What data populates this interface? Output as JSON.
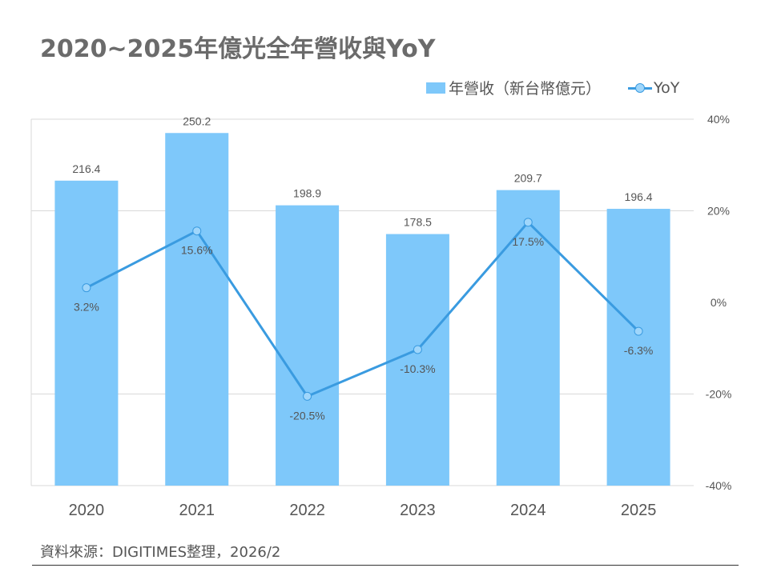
{
  "title": "2020~2025年億光全年營收與YoY",
  "source": "資料來源：DIGITIMES整理，2026/2",
  "colors": {
    "bar": "#7ec8fa",
    "line": "#3a9be0",
    "point_fill": "#9fd6fb",
    "grid": "#d9d9d9",
    "text": "#555555"
  },
  "chart_data": {
    "type": "bar",
    "categories": [
      "2020",
      "2021",
      "2022",
      "2023",
      "2024",
      "2025"
    ],
    "series": [
      {
        "name": "年營收（新台幣億元）",
        "type": "bar",
        "axis": "left",
        "values": [
          216.4,
          250.2,
          198.9,
          178.5,
          209.7,
          196.4
        ],
        "labels": [
          "216.4",
          "250.2",
          "198.9",
          "178.5",
          "209.7",
          "196.4"
        ]
      },
      {
        "name": "YoY",
        "type": "line",
        "axis": "right",
        "values": [
          3.2,
          15.6,
          -20.5,
          -10.3,
          17.5,
          -6.3
        ],
        "labels": [
          "3.2%",
          "15.6%",
          "-20.5%",
          "-10.3%",
          "17.5%",
          "-6.3%"
        ]
      }
    ],
    "y_left": {
      "lim": [
        0,
        260
      ]
    },
    "y_right": {
      "lim": [
        -40,
        40
      ],
      "ticks": [
        "40%",
        "20%",
        "0%",
        "-20%",
        "-40%"
      ],
      "tick_values": [
        40,
        20,
        0,
        -20,
        -40
      ]
    },
    "grid": true,
    "legend_position": "top-right"
  }
}
